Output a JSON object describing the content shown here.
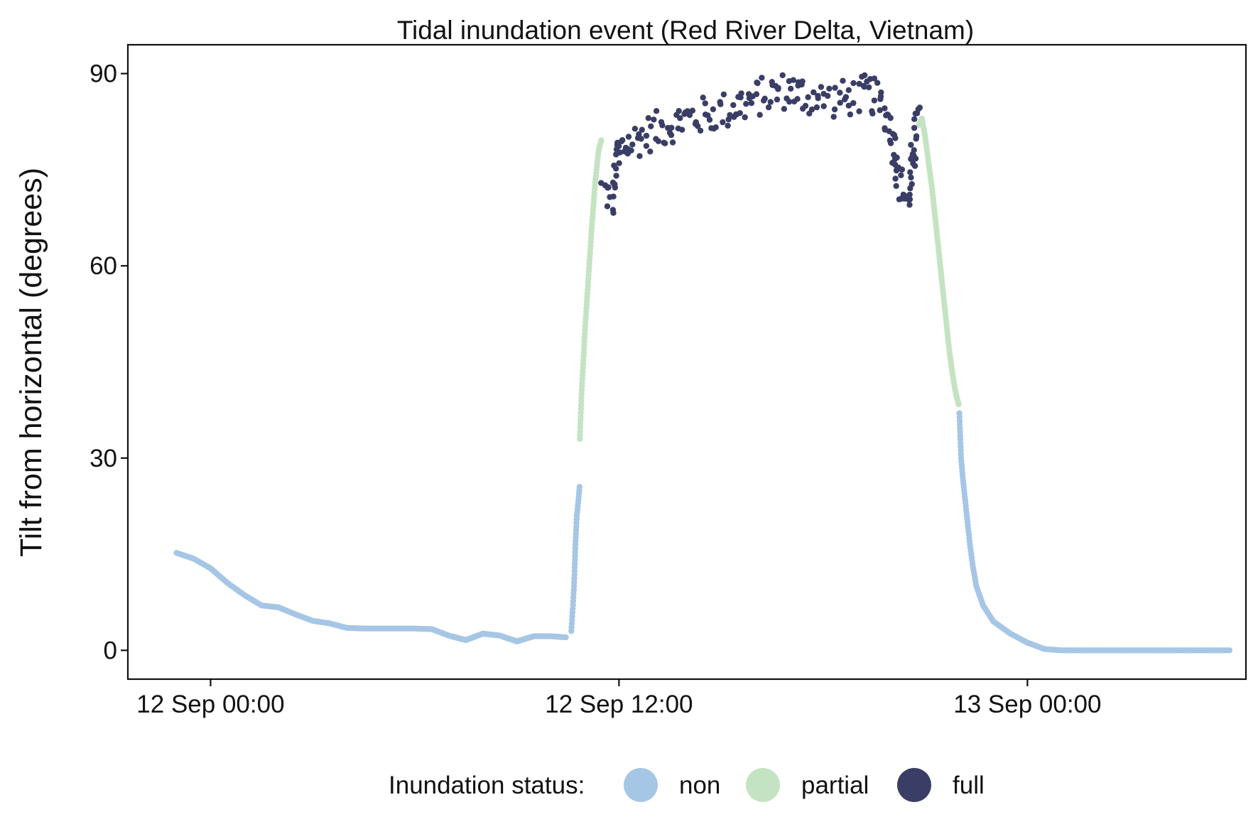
{
  "chart_data": {
    "type": "scatter",
    "title": "Tidal  inundation event (Red River Delta, Vietnam)",
    "xlabel": "",
    "ylabel": "Tilt from horizontal (degrees)",
    "x_unit": "hours relative to 12 Sep 00:00",
    "xlim": [
      -2.43,
      30.42
    ],
    "ylim": [
      -4.5,
      94.5
    ],
    "x_ticks": [
      {
        "value": 0,
        "label": "12 Sep 00:00"
      },
      {
        "value": 12,
        "label": "12 Sep 12:00"
      },
      {
        "value": 24,
        "label": "13 Sep 00:00"
      }
    ],
    "y_ticks": [
      {
        "value": 0,
        "label": "0"
      },
      {
        "value": 30,
        "label": "30"
      },
      {
        "value": 60,
        "label": "60"
      },
      {
        "value": 90,
        "label": "90"
      }
    ],
    "grid": false,
    "legend": {
      "position": "bottom",
      "title": "Inundation status:"
    },
    "colors": {
      "non": "#a6c6e5",
      "partial": "#c4e3c2",
      "full": "#3a3e66"
    },
    "series": [
      {
        "name": "non",
        "color": "#a6c6e5",
        "segments": [
          {
            "x": [
              -1.0,
              -0.5,
              0.0,
              0.5,
              1.0,
              1.5,
              2.0,
              2.5,
              3.0,
              3.5,
              4.0,
              4.5,
              5.0,
              5.5,
              6.0,
              6.5,
              7.0,
              7.5,
              8.0,
              8.5,
              9.0,
              9.5,
              10.0,
              10.5,
              11.0,
              12.0,
              13.0,
              14.0,
              15.0,
              16.0,
              17.0,
              18.0,
              19.0,
              20.0,
              21.0,
              22.0,
              23.0,
              24.0,
              25.0,
              26.0,
              27.0,
              28.0,
              29.0,
              30.0
            ],
            "y": [
              15.2,
              14.3,
              12.8,
              10.5,
              8.6,
              7.0,
              6.7,
              5.6,
              4.6,
              4.2,
              3.5,
              3.4,
              3.4,
              3.4,
              3.4,
              3.3,
              2.3,
              1.6,
              2.6,
              2.3,
              1.4,
              2.2,
              null,
              null,
              null,
              null,
              null,
              null,
              null,
              null,
              null,
              null,
              null,
              null,
              null,
              null,
              null,
              null,
              null,
              null,
              null,
              null,
              null,
              null
            ],
            "note": ""
          },
          {
            "x": [
              7.0,
              7.5,
              8.0,
              8.5,
              9.0,
              9.5,
              10.0,
              10.5
            ],
            "y": [
              2.3,
              1.6,
              2.6,
              2.3,
              1.4,
              2.2,
              2.2,
              2.0
            ]
          },
          {
            "x": [
              10.6,
              10.68,
              10.72,
              10.76,
              10.8,
              10.85
            ],
            "y": [
              3.0,
              10.0,
              16.5,
              21.0,
              23.0,
              26.0
            ]
          },
          {
            "x": [
              22.0,
              22.05,
              22.1,
              22.2,
              22.3,
              22.4,
              22.5,
              22.7,
              23.0,
              23.5,
              24.0,
              24.5,
              25.0,
              26.0,
              27.0,
              28.0,
              29.0,
              30.0
            ],
            "y": [
              37.0,
              30.0,
              27.0,
              22.0,
              17.0,
              13.0,
              10.0,
              7.0,
              4.5,
              2.6,
              1.2,
              0.2,
              0.0,
              0.0,
              0.0,
              0.0,
              0.0,
              0.0
            ]
          }
        ]
      },
      {
        "name": "partial",
        "color": "#c4e3c2",
        "segments": [
          {
            "x": [
              10.85,
              10.9,
              11.0,
              11.1,
              11.2,
              11.3,
              11.4,
              11.5
            ],
            "y": [
              33.0,
              40.0,
              50.0,
              58.0,
              66.0,
              73.0,
              78.0,
              80.0
            ]
          },
          {
            "x": [
              20.8,
              20.9,
              21.0,
              21.1,
              21.2,
              21.3,
              21.4,
              21.5,
              21.6,
              21.7,
              21.8,
              21.9,
              22.0
            ],
            "y": [
              82.0,
              83.0,
              80.0,
              76.0,
              72.0,
              67.0,
              62.0,
              57.0,
              52.0,
              47.0,
              43.0,
              40.0,
              38.0
            ]
          }
        ]
      },
      {
        "name": "full",
        "color": "#3a3e66",
        "segments": [
          {
            "x": [
              11.5,
              11.8,
              12.0,
              12.3,
              12.6,
              13.0,
              13.5,
              14.0,
              14.5,
              15.0,
              15.5,
              16.0,
              16.5,
              17.0,
              17.5,
              18.0,
              18.5,
              19.0,
              19.3,
              19.6,
              19.8,
              20.0,
              20.1,
              20.3,
              20.5,
              20.7,
              20.8
            ],
            "y": [
              72.0,
              70.0,
              78.0,
              79.0,
              80.0,
              81.0,
              82.0,
              83.0,
              83.5,
              84.0,
              85.0,
              86.0,
              87.0,
              87.5,
              86.5,
              86.0,
              86.0,
              86.5,
              87.0,
              86.0,
              84.0,
              82.0,
              78.0,
              72.0,
              70.0,
              80.0,
              84.0
            ]
          }
        ]
      }
    ]
  }
}
